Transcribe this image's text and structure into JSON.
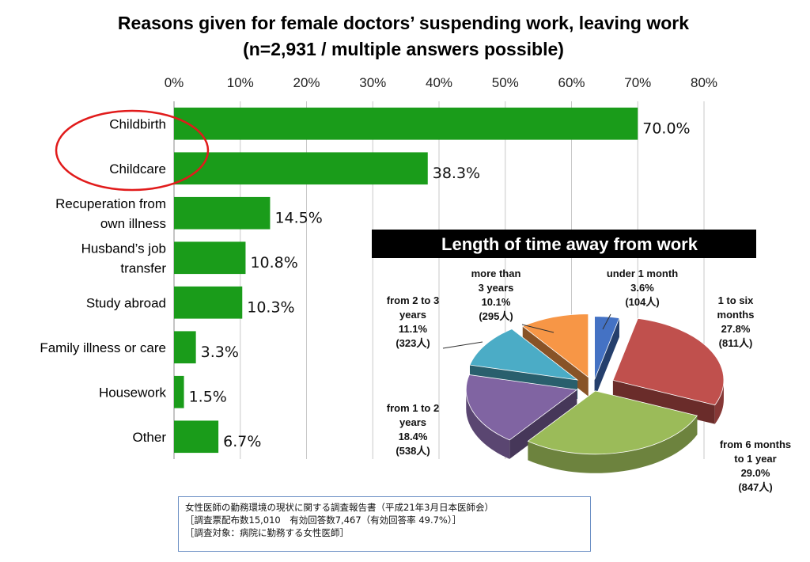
{
  "chart_data": [
    {
      "type": "bar",
      "orientation": "horizontal",
      "title": "Reasons given for female doctors’ suspending work, leaving work",
      "subtitle": "(n=2,931 / multiple answers possible)",
      "categories": [
        "Childbirth",
        "Childcare",
        "Recuperation from own illness",
        "Husband’s job transfer",
        "Study abroad",
        "Family illness or care",
        "Housework",
        "Other"
      ],
      "category_lines": [
        [
          "Childbirth"
        ],
        [
          "Childcare"
        ],
        [
          "Recuperation from",
          "own illness"
        ],
        [
          "Husband’s job",
          "transfer"
        ],
        [
          "Study abroad"
        ],
        [
          "Family illness or care"
        ],
        [
          "Housework"
        ],
        [
          "Other"
        ]
      ],
      "values": [
        70.0,
        38.3,
        14.5,
        10.8,
        10.3,
        3.3,
        1.5,
        6.7
      ],
      "value_labels": [
        "70.0%",
        "38.3%",
        "14.5%",
        "10.8%",
        "10.3%",
        "3.3%",
        "1.5%",
        "6.7%"
      ],
      "xlim": [
        0,
        80
      ],
      "xticks": [
        "0%",
        "10%",
        "20%",
        "30%",
        "40%",
        "50%",
        "60%",
        "70%",
        "80%"
      ],
      "x_axis_position": "top",
      "grid": true,
      "bar_color": "#1a9c1a",
      "highlight": {
        "categories": [
          "Childbirth",
          "Childcare"
        ],
        "shape": "ellipse",
        "color": "#e11b1b"
      }
    },
    {
      "type": "pie",
      "style": "3d-exploded",
      "title": "Length of time away from work",
      "slices": [
        {
          "label": "under 1 month",
          "lines": [
            "under 1 month",
            "3.6%",
            "(104人)"
          ],
          "value": 3.6,
          "count": 104,
          "color": "#4472c4"
        },
        {
          "label": "1 to six months",
          "lines": [
            "1 to six",
            "months",
            "27.8%",
            "(811人)"
          ],
          "value": 27.8,
          "count": 811,
          "color": "#c0504d"
        },
        {
          "label": "from 6 months to 1 year",
          "lines": [
            "from 6 months",
            "to 1 year",
            "29.0%",
            "(847人)"
          ],
          "value": 29.0,
          "count": 847,
          "color": "#9bbb59"
        },
        {
          "label": "from 1 to 2 years",
          "lines": [
            "from 1 to 2",
            "years",
            "18.4%",
            "(538人)"
          ],
          "value": 18.4,
          "count": 538,
          "color": "#8064a2"
        },
        {
          "label": "from 2 to 3 years",
          "lines": [
            "from 2 to 3",
            "years",
            "11.1%",
            "(323人)"
          ],
          "value": 11.1,
          "count": 323,
          "color": "#4bacc6"
        },
        {
          "label": "more than 3 years",
          "lines": [
            "more than",
            "3 years",
            "10.1%",
            "(295人)"
          ],
          "value": 10.1,
          "count": 295,
          "color": "#f79646"
        }
      ]
    }
  ],
  "source": {
    "lines": [
      "女性医師の勤務環境の現状に関する調査報告書（平成21年3月日本医師会）",
      "［調査票配布数15,010　有効回答数7,467（有効回答率 49.7%）］",
      "［調査対象：病院に勤務する女性医師］"
    ]
  }
}
